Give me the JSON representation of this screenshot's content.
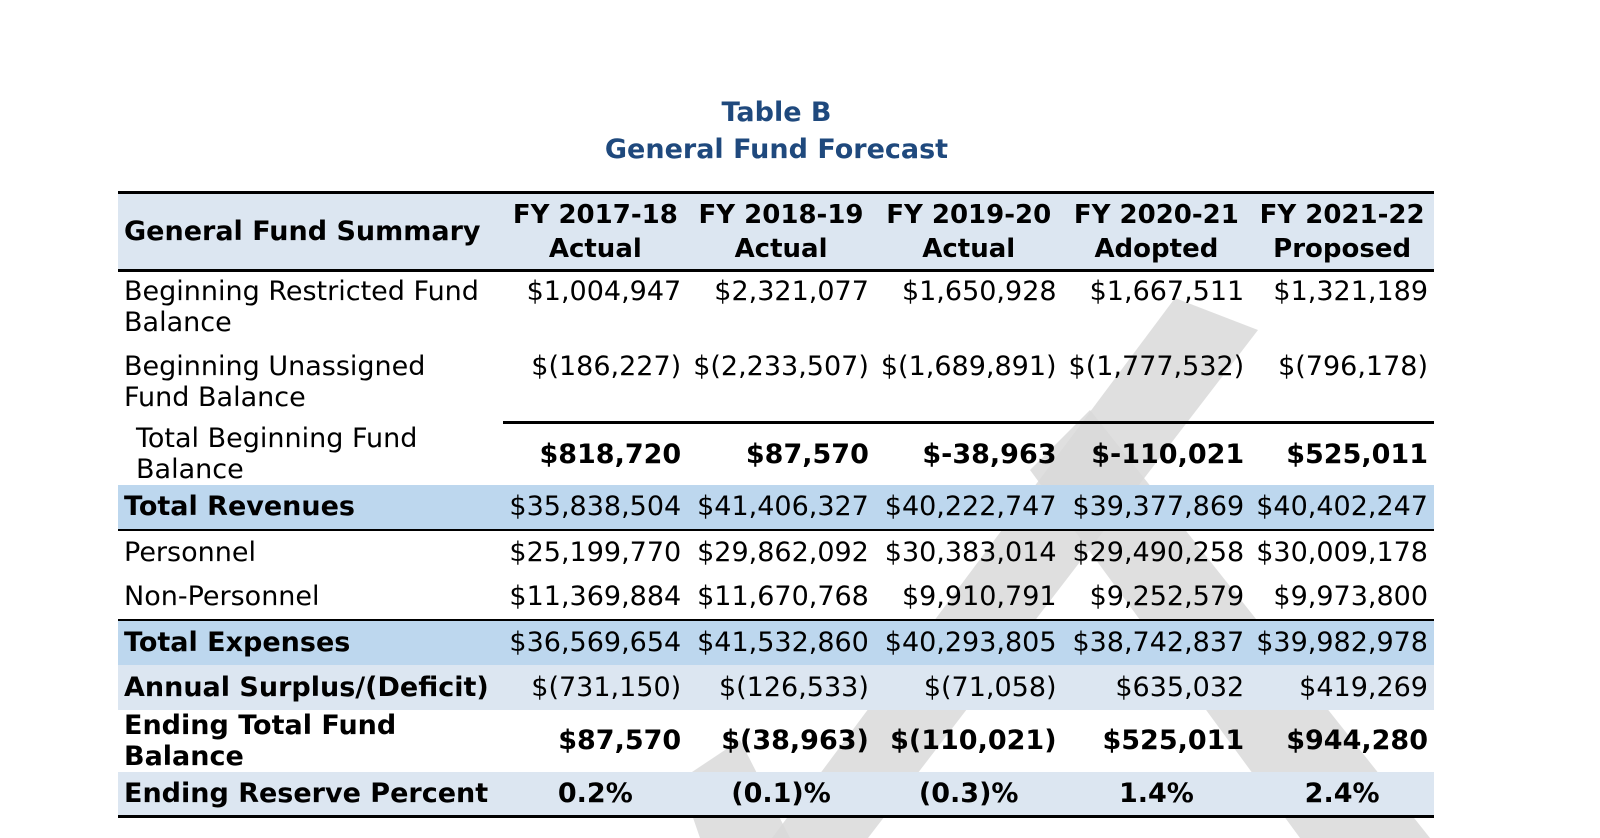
{
  "title": "Table B",
  "subtitle": "General Fund Forecast",
  "header": {
    "label": "General Fund Summary",
    "columns": [
      {
        "year": "FY 2017-18",
        "status": "Actual"
      },
      {
        "year": "FY 2018-19",
        "status": "Actual"
      },
      {
        "year": "FY 2019-20",
        "status": "Actual"
      },
      {
        "year": "FY 2020-21",
        "status": "Adopted"
      },
      {
        "year": "FY 2021-22",
        "status": "Proposed"
      }
    ]
  },
  "rows": {
    "beg_restricted": {
      "label": "Beginning Restricted Fund Balance",
      "values": [
        "$1,004,947",
        "$2,321,077",
        "$1,650,928",
        "$1,667,511",
        "$1,321,189"
      ]
    },
    "beg_unassigned": {
      "label": "Beginning Unassigned Fund Balance",
      "values": [
        "$(186,227)",
        "$(2,233,507)",
        "$(1,689,891)",
        "$(1,777,532)",
        "$(796,178)"
      ]
    },
    "total_beginning": {
      "label": "Total Beginning Fund Balance",
      "values": [
        "$818,720",
        "$87,570",
        "$-38,963",
        "$-110,021",
        "$525,011"
      ]
    },
    "total_revenues": {
      "label": "Total Revenues",
      "values": [
        "$35,838,504",
        "$41,406,327",
        "$40,222,747",
        "$39,377,869",
        "$40,402,247"
      ]
    },
    "personnel": {
      "label": "Personnel",
      "values": [
        "$25,199,770",
        "$29,862,092",
        "$30,383,014",
        "$29,490,258",
        "$30,009,178"
      ]
    },
    "non_personnel": {
      "label": "Non-Personnel",
      "values": [
        "$11,369,884",
        "$11,670,768",
        "$9,910,791",
        "$9,252,579",
        "$9,973,800"
      ]
    },
    "total_expenses": {
      "label": "Total Expenses",
      "values": [
        "$36,569,654",
        "$41,532,860",
        "$40,293,805",
        "$38,742,837",
        "$39,982,978"
      ]
    },
    "annual_surplus": {
      "label": "Annual Surplus/(Deficit)",
      "values": [
        "$(731,150)",
        "$(126,533)",
        "$(71,058)",
        "$635,032",
        "$419,269"
      ]
    },
    "ending_balance": {
      "label": "Ending Total Fund Balance",
      "values": [
        "$87,570",
        "$(38,963)",
        "$(110,021)",
        "$525,011",
        "$944,280"
      ]
    },
    "ending_reserve": {
      "label": "Ending Reserve Percent",
      "values": [
        "0.2%",
        "(0.1)%",
        "(0.3)%",
        "1.4%",
        "2.4%"
      ]
    }
  },
  "colors": {
    "title": "#1f497d",
    "header_bg": "#dce6f1",
    "highlight_bg": "#bdd7ee",
    "watermark": "#d9d9d9"
  }
}
